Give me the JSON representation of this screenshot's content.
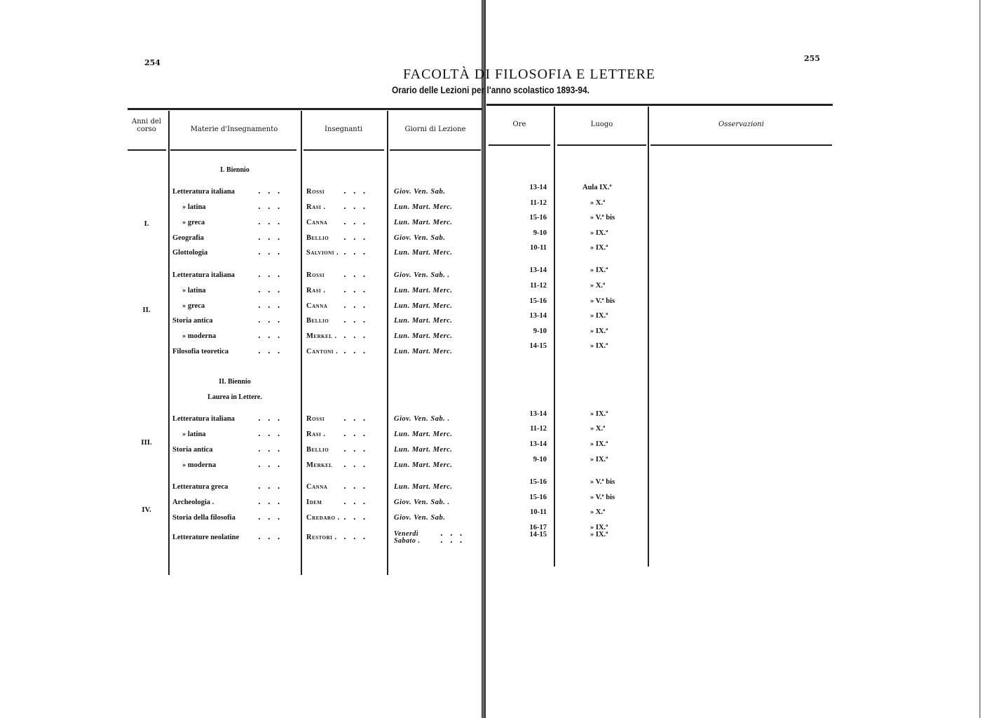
{
  "page_left": "254",
  "page_right": "255",
  "title": "FACOLTÀ DI FILOSOFIA E LETTERE",
  "subtitle": "Orario delle Lezioni per l'anno scolastico 1893-94.",
  "headers": {
    "anni": "Anni del corso",
    "materie": "Materie d'Insegnamento",
    "insegnanti": "Insegnanti",
    "giorni": "Giorni di Lezione",
    "ore": "Ore",
    "luogo": "Luogo",
    "osservazioni": "Osservazioni"
  },
  "sections": {
    "biennio1": "I. Biennio",
    "biennio2": "II. Biennio",
    "laurea": "Laurea in Lettere."
  },
  "anni": [
    "I.",
    "II.",
    "III.",
    "IV."
  ],
  "rows": [
    {
      "materia": "Letteratura italiana",
      "insegnante": "Rossi",
      "giorni": [
        "Giov. Ven. Sab."
      ],
      "ore": [
        "13-14"
      ],
      "luogo": [
        "Aula IX.ª"
      ]
    },
    {
      "materia": "»      latina",
      "insegnante": "Rasi .",
      "giorni": [
        "Lun. Mart. Merc."
      ],
      "ore": [
        "11-12"
      ],
      "luogo": [
        "»  X.ª"
      ]
    },
    {
      "materia": "»      greca",
      "insegnante": "Canna",
      "giorni": [
        "Lun. Mart. Merc."
      ],
      "ore": [
        "15-16"
      ],
      "luogo": [
        "»  V.ª bis"
      ]
    },
    {
      "materia": "Geografia",
      "insegnante": "Bellio",
      "giorni": [
        "Giov. Ven. Sab."
      ],
      "ore": [
        "9-10"
      ],
      "luogo": [
        "»  IX.ª"
      ]
    },
    {
      "materia": "Glottologia",
      "insegnante": "Salvioni .",
      "giorni": [
        "Lun. Mart. Merc."
      ],
      "ore": [
        "10-11"
      ],
      "luogo": [
        "»  IX.ª"
      ]
    },
    {
      "materia": "Letteratura italiana",
      "insegnante": "Rossi",
      "giorni": [
        "Giov. Ven. Sab. ."
      ],
      "ore": [
        "13-14"
      ],
      "luogo": [
        "»  IX.ª"
      ]
    },
    {
      "materia": "»      latina",
      "insegnante": "Rasi .",
      "giorni": [
        "Lun. Mart. Merc."
      ],
      "ore": [
        "11-12"
      ],
      "luogo": [
        "»  X.ª"
      ]
    },
    {
      "materia": "»      greca",
      "insegnante": "Canna",
      "giorni": [
        "Lun. Mart. Merc."
      ],
      "ore": [
        "15-16"
      ],
      "luogo": [
        "»  V.ª bis"
      ]
    },
    {
      "materia": "Storia antica",
      "insegnante": "Bellio",
      "giorni": [
        "Lun. Mart. Merc."
      ],
      "ore": [
        "13-14"
      ],
      "luogo": [
        "»  IX.ª"
      ]
    },
    {
      "materia": "»  moderna",
      "insegnante": "Merkel .",
      "giorni": [
        "Lun. Mart. Merc."
      ],
      "ore": [
        "9-10"
      ],
      "luogo": [
        "»  IX.ª"
      ]
    },
    {
      "materia": "Filosofia teoretica",
      "insegnante": "Cantoni .",
      "giorni": [
        "Lun. Mart. Merc."
      ],
      "ore": [
        "14-15"
      ],
      "luogo": [
        "»  IX.ª"
      ]
    },
    {
      "materia": "Letteratura italiana",
      "insegnante": "Rossi",
      "giorni": [
        "Giov. Ven. Sab. ."
      ],
      "ore": [
        "13-14"
      ],
      "luogo": [
        "»  IX.ª"
      ]
    },
    {
      "materia": "»      latina",
      "insegnante": "Rasi .",
      "giorni": [
        "Lun. Mart. Merc."
      ],
      "ore": [
        "11-12"
      ],
      "luogo": [
        "»  X.ª"
      ]
    },
    {
      "materia": "Storia antica",
      "insegnante": "Bellio",
      "giorni": [
        "Lun. Mart. Merc."
      ],
      "ore": [
        "13-14"
      ],
      "luogo": [
        "»  IX.ª"
      ]
    },
    {
      "materia": "»  moderna",
      "insegnante": "Merkel",
      "giorni": [
        "Lun. Mart. Merc."
      ],
      "ore": [
        "9-10"
      ],
      "luogo": [
        "»  IX.ª"
      ]
    },
    {
      "materia": "Letteratura greca",
      "insegnante": "Canna",
      "giorni": [
        "Lun. Mart. Merc."
      ],
      "ore": [
        "15-16"
      ],
      "luogo": [
        "»  V.ª bis"
      ]
    },
    {
      "materia": "Archeologia .",
      "insegnante": "Idem",
      "giorni": [
        "Giov. Ven. Sab. ."
      ],
      "ore": [
        "15-16"
      ],
      "luogo": [
        "»  V.ª bis"
      ]
    },
    {
      "materia": "Storia della filosofia",
      "insegnante": "Credaro .",
      "giorni": [
        "Giov. Ven. Sab."
      ],
      "ore": [
        "10-11"
      ],
      "luogo": [
        "»  X.ª"
      ]
    },
    {
      "materia": "Letterature neolatine",
      "insegnante": "Restori .",
      "giorni": [
        "Venerdì",
        "Sabato ."
      ],
      "ore": [
        "16-17",
        "14-15"
      ],
      "luogo": [
        "»  IX.ª",
        "»  IX.ª"
      ]
    }
  ]
}
